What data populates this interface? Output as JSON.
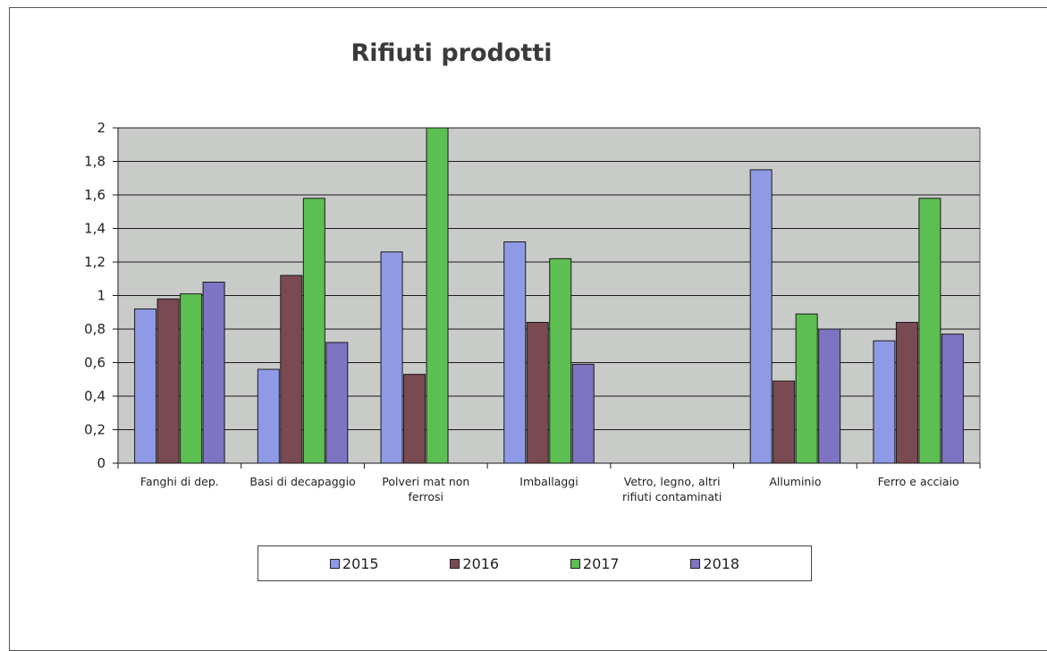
{
  "chart_data": {
    "type": "bar",
    "title": "Rifiuti prodotti",
    "categories": [
      [
        "Fanghi di dep."
      ],
      [
        "Basi di decapaggio"
      ],
      [
        "Polveri mat non",
        "ferrosi"
      ],
      [
        "Imballaggi"
      ],
      [
        "Vetro, legno, altri",
        "rifiuti contaminati"
      ],
      [
        "Alluminio"
      ],
      [
        "Ferro e acciaio"
      ]
    ],
    "series": [
      {
        "name": "2015",
        "color": "#8f9ae6",
        "values": [
          0.92,
          0.56,
          1.26,
          1.32,
          0,
          1.75,
          0.73
        ]
      },
      {
        "name": "2016",
        "color": "#7a4a52",
        "values": [
          0.98,
          1.12,
          0.53,
          0.84,
          0,
          0.49,
          0.84
        ]
      },
      {
        "name": "2017",
        "color": "#5cbf52",
        "values": [
          1.01,
          1.58,
          2.0,
          1.22,
          0,
          0.89,
          1.58
        ]
      },
      {
        "name": "2018",
        "color": "#7e74c3",
        "values": [
          1.08,
          0.72,
          0,
          0.59,
          0,
          0.8,
          0.77
        ]
      }
    ],
    "ylim": [
      0,
      2
    ],
    "yticks": [
      "0",
      "0,2",
      "0,4",
      "0,6",
      "0,8",
      "1",
      "1,2",
      "1,4",
      "1,6",
      "1,8",
      "2"
    ],
    "xlabel": "",
    "ylabel": "",
    "grid": true,
    "plot_background": "#c9cbc9",
    "legend_position": "bottom"
  }
}
